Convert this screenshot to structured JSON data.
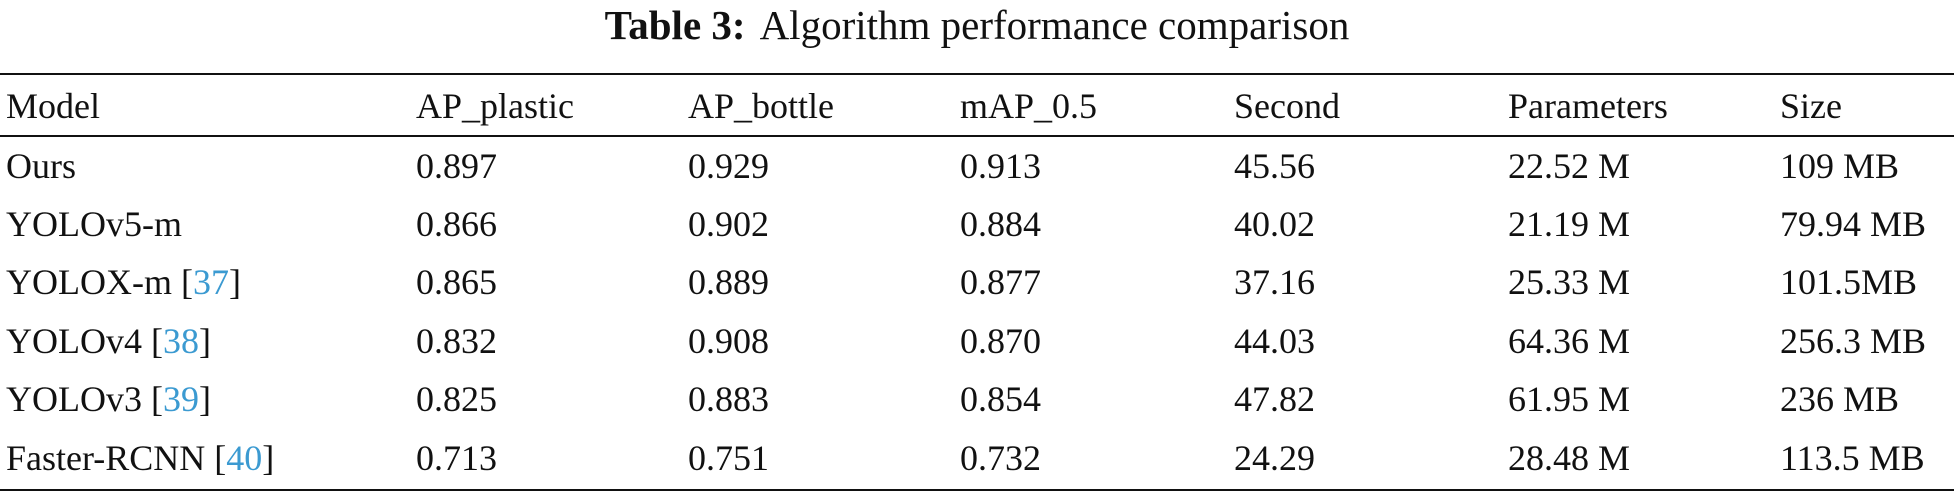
{
  "caption": {
    "label": "Table 3:",
    "text": "Algorithm performance comparison"
  },
  "table": {
    "headers": [
      "Model",
      "AP_plastic",
      "AP_bottle",
      "mAP_0.5",
      "Second",
      "Parameters",
      "Size"
    ],
    "rows": [
      {
        "model": "Ours",
        "ref": "",
        "ap_plastic": "0.897",
        "ap_bottle": "0.929",
        "map": "0.913",
        "second": "45.56",
        "params": "22.52 M",
        "size": "109 MB"
      },
      {
        "model": "YOLOv5-m",
        "ref": "",
        "ap_plastic": "0.866",
        "ap_bottle": "0.902",
        "map": "0.884",
        "second": "40.02",
        "params": "21.19 M",
        "size": "79.94 MB"
      },
      {
        "model": "YOLOX-m",
        "ref": "37",
        "ap_plastic": "0.865",
        "ap_bottle": "0.889",
        "map": "0.877",
        "second": "37.16",
        "params": "25.33 M",
        "size": "101.5MB"
      },
      {
        "model": "YOLOv4",
        "ref": "38",
        "ap_plastic": "0.832",
        "ap_bottle": "0.908",
        "map": "0.870",
        "second": "44.03",
        "params": "64.36 M",
        "size": "256.3 MB"
      },
      {
        "model": "YOLOv3",
        "ref": "39",
        "ap_plastic": "0.825",
        "ap_bottle": "0.883",
        "map": "0.854",
        "second": "47.82",
        "params": "61.95 M",
        "size": "236 MB"
      },
      {
        "model": "Faster-RCNN",
        "ref": "40",
        "ap_plastic": "0.713",
        "ap_bottle": "0.751",
        "map": "0.732",
        "second": "24.29",
        "params": "28.48 M",
        "size": "113.5 MB"
      }
    ]
  },
  "colors": {
    "reference_link": "#3b9ad1",
    "text": "#111111"
  }
}
